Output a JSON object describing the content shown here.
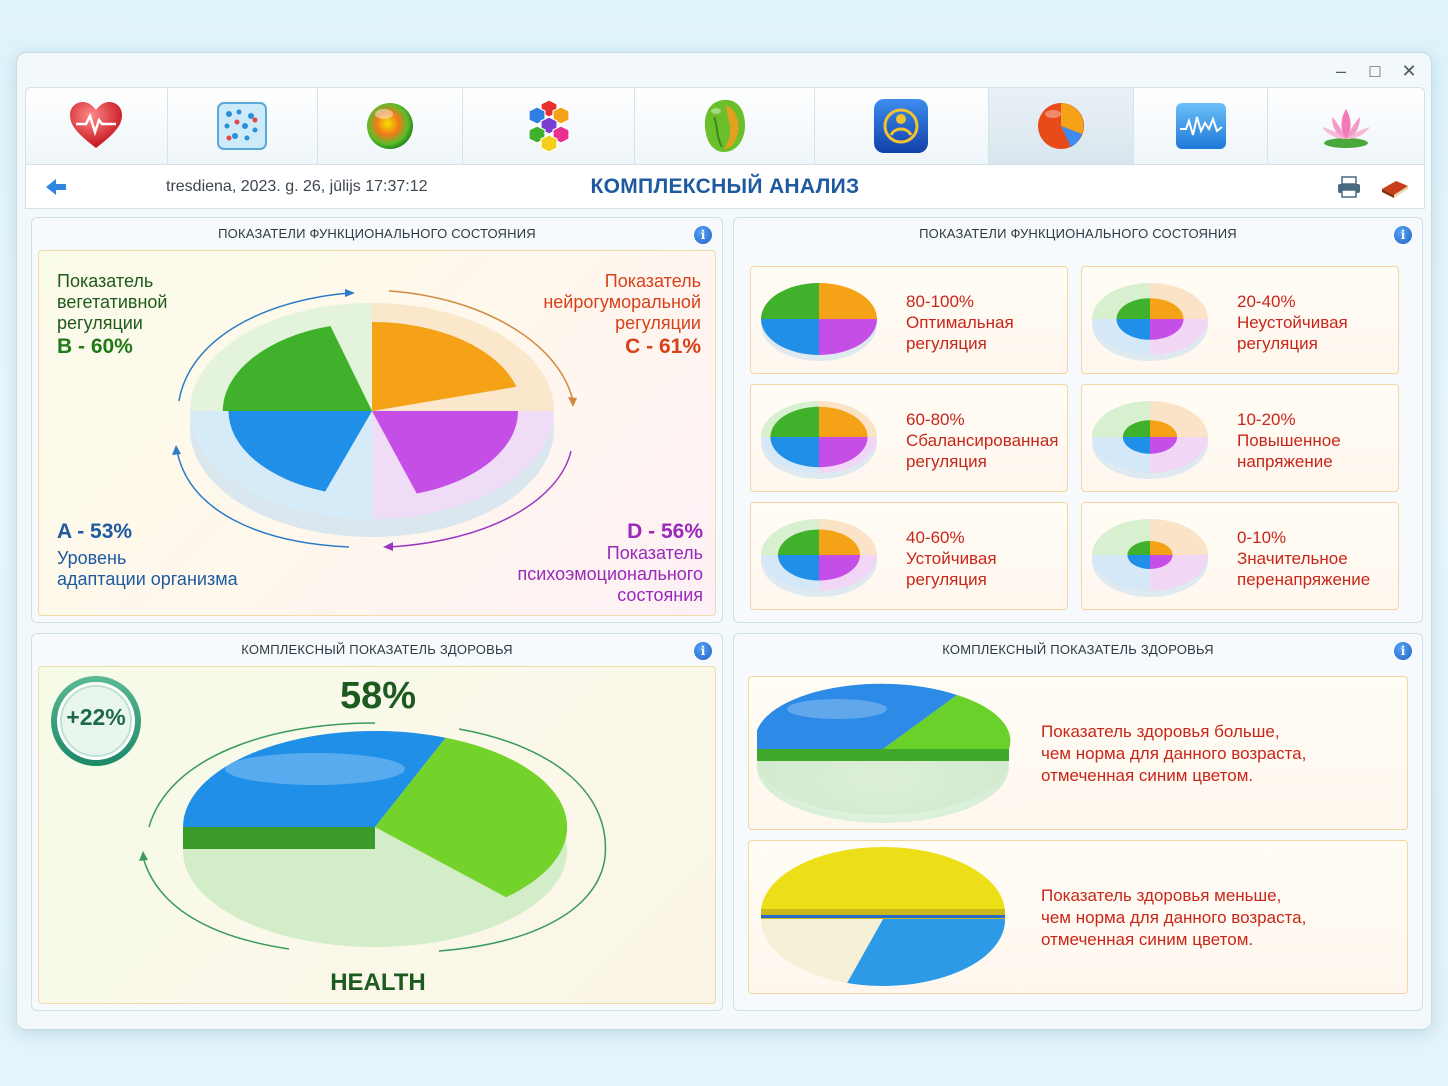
{
  "window": {
    "controls": [
      "minimize",
      "maximize",
      "close"
    ]
  },
  "toolbar": {
    "icons": [
      "heart-icon",
      "matrix-icon",
      "sphere-icon",
      "hexagon-icon",
      "organ-icon",
      "shield-icon",
      "pie-icon",
      "waveform-icon",
      "lotus-icon"
    ],
    "active_index": 6
  },
  "navbar": {
    "datetime": "tresdiena, 2023. g. 26, jūlijs 17:37:12",
    "title": "КОМПЛЕКСНЫЙ АНАЛИЗ"
  },
  "panel_functional": {
    "title": "ПОКАЗАТЕЛИ ФУНКЦИОНАЛЬНОГО СОСТОЯНИЯ",
    "b_label": [
      "Показатель",
      "вегетативной",
      "регуляции"
    ],
    "b_value": "B - 60%",
    "c_label": [
      "Показатель",
      "нейрогуморальной",
      "регуляции"
    ],
    "c_value": "C - 61%",
    "a_value": "A - 53%",
    "a_label": [
      "Уровень",
      "адаптации организма"
    ],
    "d_value": "D - 56%",
    "d_label": [
      "Показатель",
      "психоэмоционального",
      "состояния"
    ]
  },
  "panel_legend": {
    "title": "ПОКАЗАТЕЛИ ФУНКЦИОНАЛЬНОГО СОСТОЯНИЯ",
    "cards": [
      {
        "range": "80-100%",
        "line1": "Оптимальная",
        "line2": "регуляция",
        "level": 1.0
      },
      {
        "range": "20-40%",
        "line1": "Неустойчивая",
        "line2": "регуляция",
        "level": 0.35
      },
      {
        "range": "60-80%",
        "line1": "Сбалансированная",
        "line2": "регуляция",
        "level": 0.75
      },
      {
        "range": "10-20%",
        "line1": "Повышенное",
        "line2": "напряжение",
        "level": 0.18
      },
      {
        "range": "40-60%",
        "line1": "Устойчивая",
        "line2": "регуляция",
        "level": 0.55
      },
      {
        "range": "0-10%",
        "line1": "Значительное",
        "line2": "перенапряжение",
        "level": 0.06
      }
    ]
  },
  "panel_health": {
    "title": "КОМПЛЕКСНЫЙ ПОКАЗАТЕЛЬ ЗДОРОВЬЯ",
    "delta": "+22%",
    "value": "58%",
    "label": "HEALTH"
  },
  "panel_health_legend": {
    "title": "КОМПЛЕКСНЫЙ ПОКАЗАТЕЛЬ ЗДОРОВЬЯ",
    "more": [
      "Показатель здоровья больше,",
      "чем норма для данного возраста,",
      "отмеченная синим цветом."
    ],
    "less": [
      "Показатель здоровья меньше,",
      "чем норма для данного возраста,",
      "отмеченная синим цветом."
    ]
  },
  "colors": {
    "green": "#3fb12a",
    "orange": "#f5a216",
    "purple": "#c54ee6",
    "blue": "#1f8fe8",
    "lime": "#74d32a",
    "yellow": "#f2e21a",
    "title_blue": "#1e5aa0",
    "red_text": "#c8261a"
  },
  "chart_data": [
    {
      "type": "pie",
      "title": "ПОКАЗАТЕЛИ ФУНКЦИОНАЛЬНОГО СОСТОЯНИЯ",
      "series": [
        {
          "name": "A",
          "value": 53
        },
        {
          "name": "B",
          "value": 60
        },
        {
          "name": "C",
          "value": 61
        },
        {
          "name": "D",
          "value": 56
        }
      ]
    },
    {
      "type": "pie",
      "title": "КОМПЛЕКСНЫЙ ПОКАЗАТЕЛЬ ЗДОРОВЬЯ",
      "series": [
        {
          "name": "HEALTH",
          "value": 58
        }
      ]
    }
  ]
}
